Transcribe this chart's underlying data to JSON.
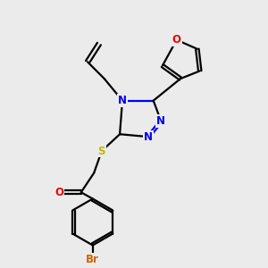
{
  "background_color": "#ebebeb",
  "bond_color": "#000000",
  "bond_width": 1.6,
  "atom_colors": {
    "N": "#0000ee",
    "O": "#ee0000",
    "S": "#bbbb00",
    "Br": "#cc6600",
    "C": "#000000"
  },
  "font_size_atom": 8.5
}
